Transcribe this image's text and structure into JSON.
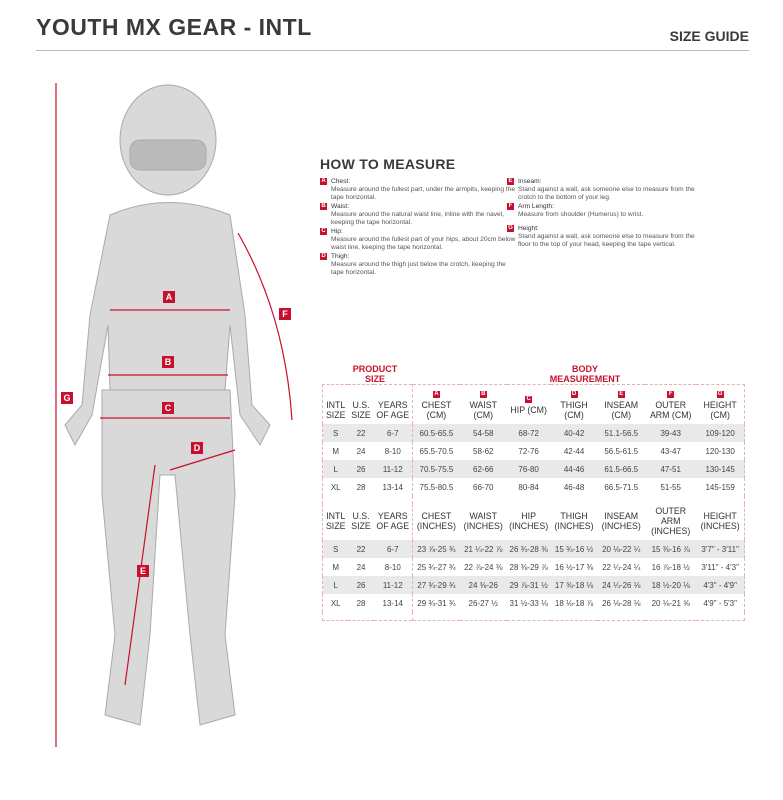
{
  "header": {
    "title": "YOUTH MX GEAR - INTL",
    "size_guide": "SIZE GUIDE"
  },
  "how_to_measure": {
    "title": "HOW TO MEASURE",
    "items": [
      {
        "badge": "A",
        "label": "Chest:",
        "text": "Measure around the fullest part, under the armpits, keeping the tape horizontal."
      },
      {
        "badge": "B",
        "label": "Waist:",
        "text": "Measure around the natural waist line, inline with the navel, keeping the tape horizontal."
      },
      {
        "badge": "C",
        "label": "Hip:",
        "text": "Measure around the fullest part of your hips, about 20cm below waist line, keeping the tape horizontal."
      },
      {
        "badge": "D",
        "label": "Thigh:",
        "text": "Measure around the thigh just below the crotch, keeping the tape horizontal."
      },
      {
        "badge": "E",
        "label": "Inseam:",
        "text": "Stand against a wall, ask someone else to measure from the crotch to the bottom of your leg."
      },
      {
        "badge": "F",
        "label": "Arm Length:",
        "text": "Measure from shoulder (Humerus) to wrist."
      },
      {
        "badge": "G",
        "label": "Height:",
        "text": "Stand against a wall, ask someone else to measure from the floor to the top of your head, keeping the tape vertical."
      }
    ]
  },
  "figure_labels": [
    "A",
    "B",
    "C",
    "D",
    "E",
    "F",
    "G"
  ],
  "table": {
    "product_size": "PRODUCT SIZE",
    "body_measurement": "BODY MEASUREMENT",
    "badges": [
      "A",
      "B",
      "C",
      "D",
      "E",
      "F",
      "G"
    ],
    "cm_headers": [
      "INTL SIZE",
      "U.S. SIZE",
      "YEARS OF AGE",
      "CHEST (CM)",
      "WAIST (CM)",
      "HIP (CM)",
      "THIGH (CM)",
      "INSEAM (CM)",
      "OUTER ARM (CM)",
      "HEIGHT (CM)"
    ],
    "cm_rows": [
      [
        "S",
        "22",
        "6-7",
        "60.5-65.5",
        "54-58",
        "68-72",
        "40-42",
        "51.1-56.5",
        "39-43",
        "109-120"
      ],
      [
        "M",
        "24",
        "8-10",
        "65.5-70.5",
        "58-62",
        "72-76",
        "42-44",
        "56.5-61.5",
        "43-47",
        "120-130"
      ],
      [
        "L",
        "26",
        "11-12",
        "70.5-75.5",
        "62-66",
        "76-80",
        "44-46",
        "61.5-66.5",
        "47-51",
        "130-145"
      ],
      [
        "XL",
        "28",
        "13-14",
        "75.5-80.5",
        "66-70",
        "80-84",
        "46-48",
        "66.5-71.5",
        "51-55",
        "145-159"
      ]
    ],
    "in_headers": [
      "INTL SIZE",
      "U.S. SIZE",
      "YEARS OF AGE",
      "CHEST (INCHES)",
      "WAIST (INCHES)",
      "HIP (INCHES)",
      "THIGH (INCHES)",
      "INSEAM (INCHES)",
      "OUTER ARM (INCHES)",
      "HEIGHT (INCHES)"
    ],
    "in_rows": [
      [
        "S",
        "22",
        "6-7",
        "23 ⅞-25 ¾",
        "21 ¼-22 ⅞",
        "26 ¾-28 ⅜",
        "15 ¾-16 ½",
        "20 ⅛-22 ¼",
        "15 ⅜-16 ⅞",
        "3'7\" - 3'11\""
      ],
      [
        "M",
        "24",
        "8-10",
        "25 ¾-27 ¾",
        "22 ⅞-24 ⅜",
        "28 ⅜-29 ⅞",
        "16 ½-17 ⅜",
        "22 ¼-24 ¼",
        "16 ⅞-18 ½",
        "3'11\" - 4'3\""
      ],
      [
        "L",
        "26",
        "11-12",
        "27 ¾-29 ¾",
        "24 ⅜-26",
        "29 ⅞-31 ½",
        "17 ⅜-18 ⅛",
        "24 ¼-26 ⅛",
        "18 ½-20 ⅛",
        "4'3\" - 4'9\""
      ],
      [
        "XL",
        "28",
        "13-14",
        "29 ¾-31 ¾",
        "26-27 ½",
        "31 ½-33 ⅛",
        "18 ⅛-18 ⅞",
        "26 ⅛-28 ⅛",
        "20 ⅛-21 ⅝",
        "4'9\" - 5'3\""
      ]
    ]
  },
  "colors": {
    "accent": "#c8102e",
    "row_band": "#e9e9e9"
  }
}
